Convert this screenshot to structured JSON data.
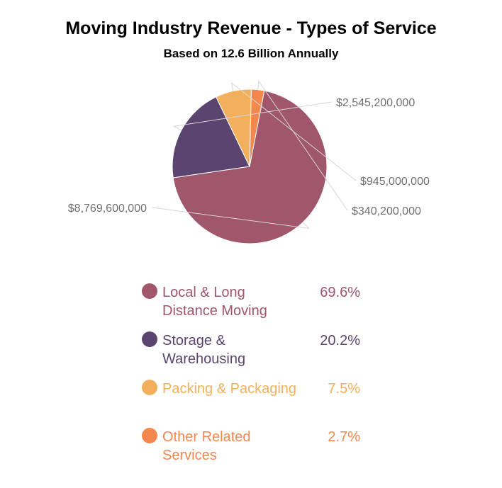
{
  "chart_data": {
    "type": "pie",
    "title": "Moving Industry Revenue - Types of Service",
    "subtitle": "Based on 12.6 Billion Annually",
    "series": [
      {
        "name": "Local & Long Distance Moving",
        "value": 8769600000,
        "data_label": "$8,769,600,000",
        "percent_label": "69.6%",
        "color": "#a0566b"
      },
      {
        "name": "Storage & Warehousing",
        "value": 2545200000,
        "data_label": "$2,545,200,000",
        "percent_label": "20.2%",
        "color": "#5b4570"
      },
      {
        "name": "Packing & Packaging",
        "value": 945000000,
        "data_label": "$945,000,000",
        "percent_label": "7.5%",
        "color": "#f3b05c"
      },
      {
        "name": "Other Related Services",
        "value": 340200000,
        "data_label": "$340,200,000",
        "percent_label": "2.7%",
        "color": "#f4874e"
      }
    ],
    "legend_position": "bottom"
  }
}
